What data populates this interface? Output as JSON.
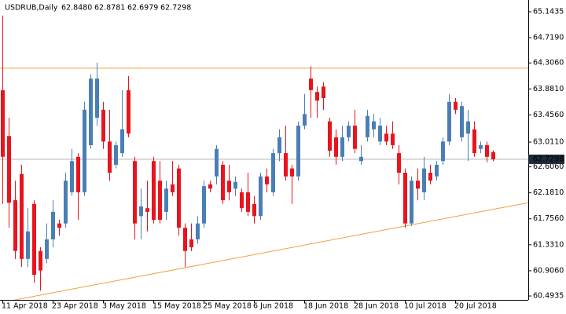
{
  "chart_data": {
    "type": "candlestick",
    "header": [
      "USDRUB,Daily",
      "62.8480",
      "62.8781",
      "62.6979",
      "62.7298"
    ],
    "categories": [
      "11 Apr 2018",
      null,
      null,
      null,
      null,
      null,
      null,
      null,
      "23 Apr 2018",
      null,
      null,
      null,
      null,
      null,
      null,
      null,
      "3 May 2018",
      null,
      null,
      null,
      null,
      null,
      null,
      null,
      "15 May 2018",
      null,
      null,
      null,
      null,
      null,
      null,
      null,
      "25 May 2018",
      null,
      null,
      null,
      null,
      null,
      null,
      null,
      "6 Jun 2018",
      null,
      null,
      null,
      null,
      null,
      null,
      null,
      "18 Jun 2018",
      null,
      null,
      null,
      null,
      null,
      null,
      null,
      "28 Jun 2018",
      null,
      null,
      null,
      null,
      null,
      null,
      null,
      "10 Jul 2018",
      null,
      null,
      null,
      null,
      null,
      null,
      null,
      "20 Jul 2018",
      null,
      null,
      null,
      null,
      null,
      null
    ],
    "open": [
      63.86,
      63.11,
      62.06,
      62.49,
      61.1,
      62.0,
      61.23,
      61.1,
      61.42,
      61.68,
      61.68,
      62.19,
      62.77,
      62.19,
      62.96,
      63.41,
      63.54,
      63.02,
      62.64,
      62.83,
      63.86,
      62.7,
      61.8,
      61.93,
      62.7,
      62.38,
      61.87,
      62.32,
      62.58,
      61.61,
      61.42,
      61.42,
      61.68,
      62.32,
      62.45,
      62.64,
      62.38,
      62.25,
      62.19,
      62.19,
      62.0,
      61.8,
      62.45,
      62.19,
      62.83,
      62.83,
      62.58,
      62.45,
      63.28,
      64.05,
      63.83,
      63.92,
      63.35,
      63.09,
      62.77,
      63.09,
      63.28,
      62.7,
      63.09,
      63.22,
      63.02,
      63.15,
      63.15,
      62.83,
      62.51,
      61.68,
      62.38,
      62.19,
      62.51,
      62.45,
      62.7,
      63.02,
      63.67,
      63.09,
      63.15,
      63.22,
      62.9,
      62.96,
      62.848
    ],
    "high": [
      65.08,
      63.41,
      62.38,
      62.64,
      61.93,
      62.06,
      61.29,
      61.68,
      62.06,
      61.74,
      62.51,
      62.9,
      62.83,
      63.67,
      64.12,
      64.31,
      63.67,
      63.54,
      63.02,
      63.86,
      64.09,
      62.77,
      62.25,
      62.38,
      62.77,
      62.7,
      62.38,
      62.7,
      62.64,
      61.68,
      61.68,
      61.8,
      62.38,
      62.38,
      62.96,
      62.7,
      62.64,
      62.45,
      62.25,
      62.51,
      62.13,
      62.51,
      62.58,
      62.9,
      63.22,
      63.28,
      62.64,
      63.35,
      63.8,
      64.25,
      63.92,
      63.99,
      63.41,
      63.22,
      63.28,
      63.35,
      63.54,
      62.96,
      63.54,
      63.47,
      63.41,
      63.28,
      63.35,
      62.96,
      62.58,
      62.45,
      62.58,
      62.77,
      62.64,
      62.7,
      63.09,
      63.8,
      63.73,
      63.67,
      63.54,
      63.35,
      63.02,
      63.02,
      62.8781
    ],
    "low": [
      62.0,
      61.61,
      61.1,
      60.97,
      60.97,
      60.71,
      60.58,
      61.03,
      61.29,
      61.48,
      61.61,
      62.13,
      61.74,
      62.13,
      62.9,
      63.28,
      62.9,
      62.38,
      62.58,
      62.77,
      63.09,
      61.42,
      61.42,
      61.55,
      61.68,
      61.68,
      61.74,
      62.13,
      61.48,
      60.97,
      61.23,
      61.35,
      61.61,
      62.19,
      62.32,
      62.0,
      62.06,
      62.13,
      61.87,
      61.8,
      61.68,
      61.74,
      62.19,
      62.13,
      62.7,
      62.38,
      62.0,
      62.38,
      63.22,
      63.41,
      63.41,
      63.54,
      62.77,
      62.64,
      62.7,
      63.02,
      62.83,
      62.64,
      63.02,
      63.09,
      62.96,
      62.96,
      62.9,
      62.32,
      61.61,
      61.64,
      62.06,
      62.06,
      62.32,
      62.38,
      62.64,
      62.96,
      63.47,
      63.02,
      62.7,
      62.77,
      62.83,
      62.68,
      62.6979
    ],
    "close": [
      62.77,
      62.02,
      61.23,
      61.1,
      61.55,
      60.84,
      60.91,
      61.42,
      61.87,
      61.61,
      62.38,
      62.7,
      62.19,
      63.54,
      64.05,
      64.05,
      63.02,
      62.51,
      62.96,
      63.22,
      63.15,
      61.68,
      61.96,
      61.87,
      61.74,
      61.74,
      62.25,
      62.19,
      61.61,
      61.23,
      61.29,
      61.68,
      62.29,
      62.25,
      62.9,
      62.06,
      62.19,
      62.36,
      61.93,
      61.87,
      61.8,
      62.45,
      62.32,
      62.83,
      63.09,
      62.45,
      62.45,
      63.28,
      63.47,
      63.86,
      63.69,
      63.73,
      62.87,
      62.77,
      63.09,
      63.28,
      62.9,
      62.77,
      63.44,
      63.35,
      63.28,
      63.02,
      62.96,
      62.51,
      61.68,
      62.38,
      62.25,
      62.58,
      62.38,
      62.64,
      63.02,
      63.67,
      63.54,
      63.6,
      63.35,
      62.83,
      62.96,
      62.77,
      62.7298
    ],
    "up_color": "#4a7fb5",
    "down_color": "#e8141e",
    "ylim": [
      60.43,
      65.31
    ],
    "yticks": [
      65.1435,
      {
        "value": 64.719,
        "label": "64.7190"
      },
      {
        "value": 64.306,
        "label": "64.3060"
      },
      {
        "value": 63.881,
        "label": "63.8810"
      },
      {
        "value": 63.456,
        "label": "63.4560"
      },
      {
        "value": 63.011,
        "label": "63.0110"
      },
      {
        "value": 62.606,
        "label": "62.6060"
      },
      {
        "value": 62.181,
        "label": "62.1810"
      },
      {
        "value": 61.756,
        "label": "61.7560"
      },
      {
        "value": 61.331,
        "label": "61.3310"
      },
      {
        "value": 60.906,
        "label": "60.9060"
      },
      60.4935
    ],
    "last_price": {
      "value": 62.7298,
      "label": "62.7298"
    },
    "hline": {
      "value": 64.22,
      "color": "#f0a040"
    },
    "trendline": {
      "values": [
        60.39,
        61.91
      ],
      "color": "#f0a040"
    },
    "grid": false
  }
}
